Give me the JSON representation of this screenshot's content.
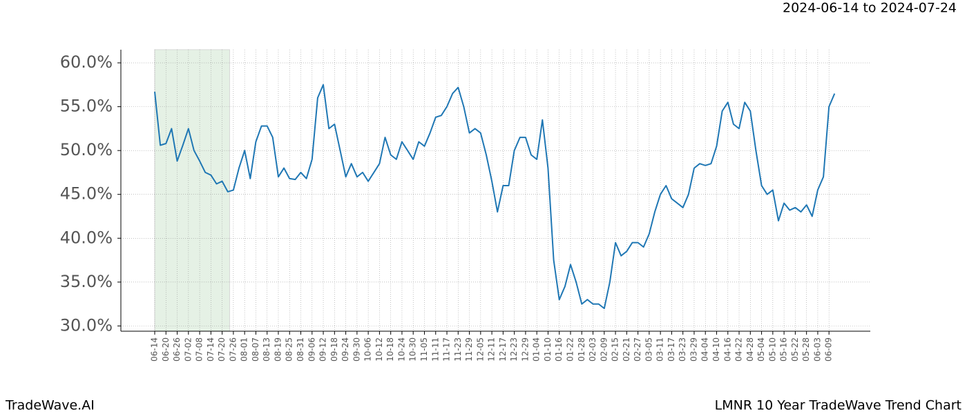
{
  "chart_data": {
    "type": "line",
    "date_range": "2024-06-14 to 2024-07-24",
    "brand": "TradeWave.AI",
    "title": "LMNR 10 Year TradeWave Trend Chart",
    "highlight": [
      "06-14",
      "07-24"
    ],
    "highlight_color": "#d5e8d4",
    "x": [
      "06-14",
      "06-17",
      "06-20",
      "06-23",
      "06-26",
      "06-29",
      "07-02",
      "07-05",
      "07-08",
      "07-11",
      "07-14",
      "07-17",
      "07-20",
      "07-23",
      "07-26",
      "07-29",
      "08-01",
      "08-04",
      "08-07",
      "08-10",
      "08-13",
      "08-16",
      "08-19",
      "08-22",
      "08-25",
      "08-28",
      "08-31",
      "09-03",
      "09-06",
      "09-09",
      "09-12",
      "09-15",
      "09-18",
      "09-21",
      "09-24",
      "09-27",
      "09-30",
      "10-03",
      "10-06",
      "10-09",
      "10-12",
      "10-15",
      "10-18",
      "10-21",
      "10-24",
      "10-27",
      "10-30",
      "11-02",
      "11-05",
      "11-08",
      "11-11",
      "11-14",
      "11-17",
      "11-20",
      "11-23",
      "11-26",
      "11-29",
      "12-02",
      "12-05",
      "12-08",
      "12-11",
      "12-14",
      "12-17",
      "12-20",
      "12-23",
      "12-26",
      "12-29",
      "01-01",
      "01-04",
      "01-07",
      "01-10",
      "01-13",
      "01-16",
      "01-19",
      "01-22",
      "01-25",
      "01-28",
      "01-31",
      "02-03",
      "02-06",
      "02-09",
      "02-12",
      "02-15",
      "02-18",
      "02-21",
      "02-24",
      "02-27",
      "03-02",
      "03-05",
      "03-08",
      "03-11",
      "03-14",
      "03-17",
      "03-20",
      "03-23",
      "03-26",
      "03-29",
      "04-01",
      "04-04",
      "04-07",
      "04-10",
      "04-13",
      "04-16",
      "04-19",
      "04-22",
      "04-25",
      "04-28",
      "05-01",
      "05-04",
      "05-07",
      "05-10",
      "05-13",
      "05-16",
      "05-19",
      "05-22",
      "05-25",
      "05-28",
      "05-31",
      "06-03",
      "06-06",
      "06-09",
      "06-12"
    ],
    "series": [
      {
        "color": "#1f77b4",
        "values": [
          56.7,
          50.6,
          50.8,
          52.5,
          48.8,
          50.6,
          52.5,
          50.0,
          48.8,
          47.5,
          47.2,
          46.2,
          46.5,
          45.3,
          45.5,
          48.0,
          50.0,
          46.8,
          51.0,
          52.8,
          52.8,
          51.5,
          47.0,
          48.0,
          46.8,
          46.7,
          47.5,
          46.8,
          49.0,
          56.0,
          57.5,
          52.5,
          53.0,
          50.0,
          47.0,
          48.5,
          47.0,
          47.5,
          46.5,
          47.5,
          48.5,
          51.5,
          49.5,
          49.0,
          51.0,
          50.0,
          49.0,
          51.0,
          50.5,
          52.0,
          53.8,
          54.0,
          55.0,
          56.5,
          57.2,
          55.0,
          52.0,
          52.5,
          52.0,
          49.5,
          46.5,
          43.0,
          46.0,
          46.0,
          50.0,
          51.5,
          51.5,
          49.5,
          49.0,
          53.5,
          48.0,
          37.5,
          33.0,
          34.5,
          37.0,
          35.0,
          32.5,
          33.0,
          32.5,
          32.5,
          32.0,
          35.0,
          39.5,
          38.0,
          38.5,
          39.5,
          39.5,
          39.0,
          40.5,
          43.0,
          45.0,
          46.0,
          44.5,
          44.0,
          43.5,
          45.0,
          48.0,
          48.5,
          48.3,
          48.5,
          50.5,
          54.5,
          55.5,
          53.0,
          52.5,
          55.5,
          54.5,
          50.0,
          46.0,
          45.0,
          45.5,
          42.0,
          44.0,
          43.2,
          43.5,
          43.0,
          43.8,
          42.5,
          45.5,
          47.0,
          55.0,
          56.5
        ]
      }
    ],
    "xticks": [
      "06-14",
      "06-20",
      "06-26",
      "07-02",
      "07-08",
      "07-14",
      "07-20",
      "07-26",
      "08-01",
      "08-07",
      "08-13",
      "08-19",
      "08-25",
      "08-31",
      "09-06",
      "09-12",
      "09-18",
      "09-24",
      "09-30",
      "10-06",
      "10-12",
      "10-18",
      "10-24",
      "10-30",
      "11-05",
      "11-11",
      "11-17",
      "11-23",
      "11-29",
      "12-05",
      "12-11",
      "12-17",
      "12-23",
      "12-29",
      "01-04",
      "01-10",
      "01-16",
      "01-22",
      "01-28",
      "02-03",
      "02-09",
      "02-15",
      "02-21",
      "02-27",
      "03-05",
      "03-11",
      "03-17",
      "03-23",
      "03-29",
      "04-04",
      "04-10",
      "04-16",
      "04-22",
      "04-28",
      "05-04",
      "05-10",
      "05-16",
      "05-22",
      "05-28",
      "06-03",
      "06-09"
    ],
    "ylim": [
      29.4,
      61.5
    ],
    "yticks": [
      {
        "value": 30,
        "label": "30.0%"
      },
      {
        "value": 35,
        "label": "35.0%"
      },
      {
        "value": 40,
        "label": "40.0%"
      },
      {
        "value": 45,
        "label": "45.0%"
      },
      {
        "value": 50,
        "label": "50.0%"
      },
      {
        "value": 55,
        "label": "55.0%"
      },
      {
        "value": 60,
        "label": "60.0%"
      }
    ],
    "grid": true
  }
}
